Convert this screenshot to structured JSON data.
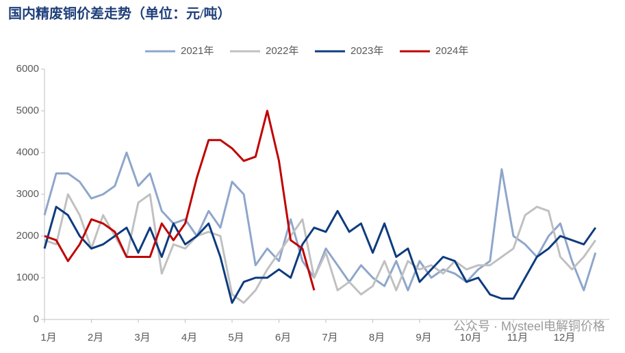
{
  "chart_data": {
    "type": "line",
    "title": "国内精废铜价差走势（单位：元/吨）",
    "watermark": "公众号 · Mysteel电解铜价格",
    "x": [
      0,
      0.25,
      0.5,
      0.75,
      1,
      1.25,
      1.5,
      1.75,
      2,
      2.25,
      2.5,
      2.75,
      3,
      3.25,
      3.5,
      3.75,
      4,
      4.25,
      4.5,
      4.75,
      5,
      5.25,
      5.5,
      5.75,
      6,
      6.25,
      6.5,
      6.75,
      7,
      7.25,
      7.5,
      7.75,
      8,
      8.25,
      8.5,
      8.75,
      9,
      9.25,
      9.5,
      9.75,
      10,
      10.25,
      10.5,
      10.75,
      11,
      11.25,
      11.5,
      11.75,
      12
    ],
    "xlim": [
      0,
      12
    ],
    "xticks": [
      {
        "value": 0,
        "label": "1月"
      },
      {
        "value": 1,
        "label": "2月"
      },
      {
        "value": 2,
        "label": "3月"
      },
      {
        "value": 3,
        "label": "4月"
      },
      {
        "value": 4,
        "label": "5月"
      },
      {
        "value": 5,
        "label": "6月"
      },
      {
        "value": 6,
        "label": "7月"
      },
      {
        "value": 7,
        "label": "8月"
      },
      {
        "value": 8,
        "label": "9月"
      },
      {
        "value": 9,
        "label": "10月"
      },
      {
        "value": 10,
        "label": "11月"
      },
      {
        "value": 11,
        "label": "12月"
      }
    ],
    "ylim": [
      0,
      6000
    ],
    "yticks": [
      0,
      1000,
      2000,
      3000,
      4000,
      5000,
      6000
    ],
    "legend": "top",
    "series": [
      {
        "name": "2021年",
        "color": "#8ea6cb",
        "values": [
          2500,
          3500,
          3500,
          3300,
          2900,
          3000,
          3200,
          4000,
          3200,
          3500,
          2600,
          2300,
          2400,
          2000,
          2600,
          2200,
          3300,
          3000,
          1300,
          1700,
          1400,
          2400,
          1400,
          1000,
          1700,
          1300,
          900,
          1300,
          1000,
          800,
          1400,
          700,
          1400,
          1000,
          1200,
          1100,
          900,
          1200,
          1400,
          3600,
          2000,
          1800,
          1500,
          2000,
          2300,
          1400,
          700,
          1600,
          null
        ]
      },
      {
        "name": "2022年",
        "color": "#c0c0c0",
        "values": [
          1900,
          1800,
          3000,
          2500,
          1700,
          2500,
          2000,
          1500,
          2800,
          3000,
          1100,
          1800,
          1700,
          2000,
          2100,
          2000,
          600,
          400,
          700,
          1200,
          1600,
          2000,
          2400,
          1000,
          1600,
          700,
          900,
          600,
          800,
          1400,
          700,
          1400,
          1200,
          1300,
          1100,
          1400,
          1200,
          1300,
          1300,
          1500,
          1700,
          2500,
          2700,
          2600,
          1500,
          1200,
          1500,
          1900,
          null
        ]
      },
      {
        "name": "2023年",
        "color": "#0d3b7e",
        "values": [
          1700,
          2700,
          2500,
          2000,
          1700,
          1800,
          2000,
          2200,
          1600,
          2200,
          1500,
          2300,
          1800,
          2000,
          2300,
          1500,
          400,
          900,
          1000,
          1000,
          1200,
          1000,
          1800,
          2200,
          2100,
          2600,
          2100,
          2300,
          1600,
          2300,
          1500,
          1700,
          900,
          1200,
          1500,
          1400,
          900,
          1000,
          600,
          500,
          500,
          1000,
          1500,
          1700,
          2000,
          1900,
          1800,
          2200,
          null
        ]
      },
      {
        "name": "2024年",
        "color": "#c00000",
        "values": [
          2000,
          1900,
          1400,
          1800,
          2400,
          2300,
          2100,
          1500,
          1500,
          1500,
          2300,
          1900,
          2300,
          3400,
          4300,
          4300,
          4100,
          3800,
          3900,
          5000,
          3800,
          1900,
          1700,
          700,
          null,
          null,
          null,
          null,
          null,
          null,
          null,
          null,
          null,
          null,
          null,
          null,
          null,
          null,
          null,
          null,
          null,
          null,
          null,
          null,
          null,
          null,
          null,
          null,
          null
        ]
      }
    ]
  }
}
